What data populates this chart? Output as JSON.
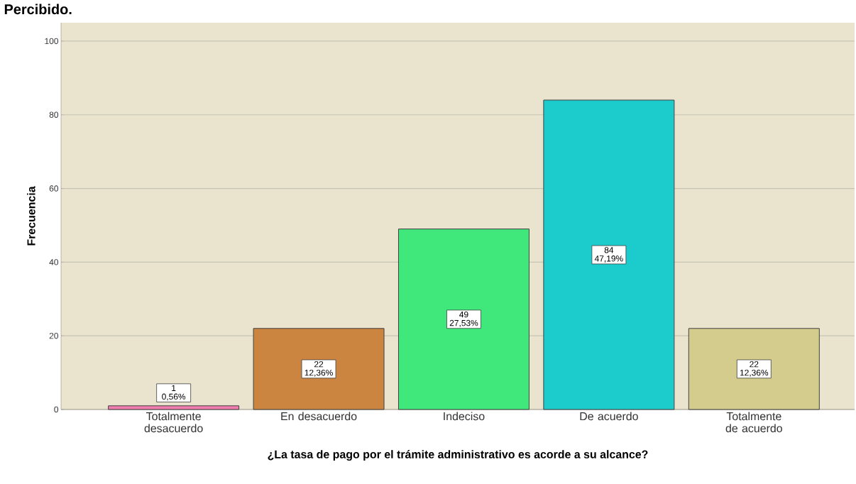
{
  "chart_data": {
    "type": "bar",
    "title": "Percibido.",
    "xlabel": "¿La tasa de pago por el trámite administrativo es acorde a su alcance?",
    "ylabel": "Frecuencia",
    "categories": [
      "Totalmente desacuerdo",
      "En desacuerdo",
      "Indeciso",
      "De acuerdo",
      "Totalmente de acuerdo"
    ],
    "values": [
      1,
      22,
      49,
      84,
      22
    ],
    "colors": [
      "#f07cb0",
      "#cc8540",
      "#40e87c",
      "#1ccbcc",
      "#d3cc8d"
    ],
    "value_labels": [
      "1 0,56%",
      "22 12,36%",
      "49 27,53%",
      "84 47,19%",
      "22 12,36%"
    ],
    "ylim": [
      0,
      105
    ],
    "yticks": [
      0,
      20,
      40,
      60,
      80,
      100
    ],
    "grid": "y"
  }
}
